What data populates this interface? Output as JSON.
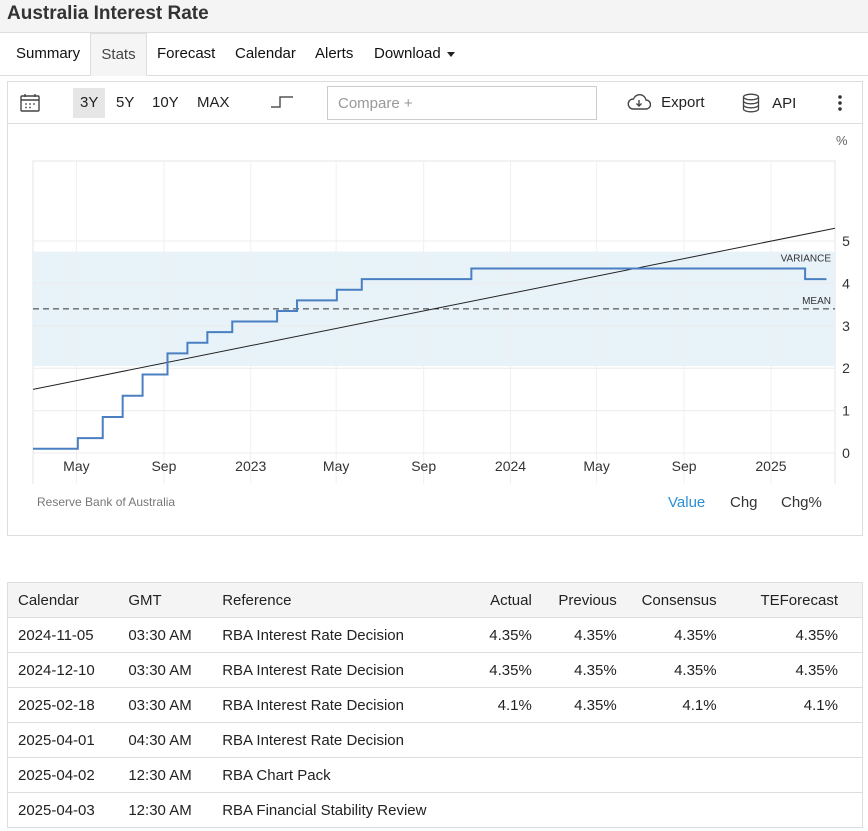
{
  "page": {
    "title": "Australia Interest Rate"
  },
  "tabs": [
    "Summary",
    "Stats",
    "Forecast",
    "Calendar",
    "Alerts",
    "Download"
  ],
  "active_tab": "Stats",
  "toolbar": {
    "ranges": [
      "3Y",
      "5Y",
      "10Y",
      "MAX"
    ],
    "active_range": "3Y",
    "compare_placeholder": "Compare +",
    "export_label": "Export",
    "api_label": "API"
  },
  "chart_data": {
    "type": "line",
    "step": true,
    "unit_label": "%",
    "xlim": [
      "2022-03-01",
      "2025-04-01"
    ],
    "ylim": [
      -1,
      5.8
    ],
    "x_ticks": [
      {
        "label": "May",
        "date": "2022-05-01"
      },
      {
        "label": "Sep",
        "date": "2022-09-01"
      },
      {
        "label": "2023",
        "date": "2023-01-01"
      },
      {
        "label": "May",
        "date": "2023-05-01"
      },
      {
        "label": "Sep",
        "date": "2023-09-01"
      },
      {
        "label": "2024",
        "date": "2024-01-01"
      },
      {
        "label": "May",
        "date": "2024-05-01"
      },
      {
        "label": "Sep",
        "date": "2024-09-01"
      },
      {
        "label": "2025",
        "date": "2025-01-01"
      }
    ],
    "y_ticks": [
      0,
      1,
      2,
      3,
      4,
      5
    ],
    "grid": true,
    "series": [
      {
        "color": "#4a7fc1",
        "points": [
          {
            "x": "2022-03-01",
            "y": 0.1
          },
          {
            "x": "2022-05-03",
            "y": 0.35
          },
          {
            "x": "2022-06-07",
            "y": 0.85
          },
          {
            "x": "2022-07-05",
            "y": 1.35
          },
          {
            "x": "2022-08-02",
            "y": 1.85
          },
          {
            "x": "2022-09-06",
            "y": 2.35
          },
          {
            "x": "2022-10-04",
            "y": 2.6
          },
          {
            "x": "2022-11-01",
            "y": 2.85
          },
          {
            "x": "2022-12-06",
            "y": 3.1
          },
          {
            "x": "2023-02-07",
            "y": 3.35
          },
          {
            "x": "2023-03-07",
            "y": 3.6
          },
          {
            "x": "2023-05-02",
            "y": 3.85
          },
          {
            "x": "2023-06-06",
            "y": 4.1
          },
          {
            "x": "2023-11-07",
            "y": 4.35
          },
          {
            "x": "2025-02-18",
            "y": 4.1
          },
          {
            "x": "2025-03-20",
            "y": 4.1
          }
        ]
      }
    ],
    "mean": 3.4,
    "mean_label": "MEAN",
    "variance_band": [
      2.05,
      4.75
    ],
    "variance_label": "VARIANCE",
    "trend": {
      "start": {
        "x": "2022-03-01",
        "y": 1.5
      },
      "end": {
        "x": "2025-04-01",
        "y": 5.3
      }
    },
    "source": "Reserve Bank of Australia"
  },
  "value_tabs": [
    "Value",
    "Chg",
    "Chg%"
  ],
  "active_value_tab": "Value",
  "calendar": {
    "columns": [
      "Calendar",
      "GMT",
      "Reference",
      "Actual",
      "Previous",
      "Consensus",
      "TEForecast"
    ],
    "rows": [
      [
        "2024-11-05",
        "03:30 AM",
        "RBA Interest Rate Decision",
        "4.35%",
        "4.35%",
        "4.35%",
        "4.35%"
      ],
      [
        "2024-12-10",
        "03:30 AM",
        "RBA Interest Rate Decision",
        "4.35%",
        "4.35%",
        "4.35%",
        "4.35%"
      ],
      [
        "2025-02-18",
        "03:30 AM",
        "RBA Interest Rate Decision",
        "4.1%",
        "4.35%",
        "4.1%",
        "4.1%"
      ],
      [
        "2025-04-01",
        "04:30 AM",
        "RBA Interest Rate Decision",
        "",
        "",
        "",
        ""
      ],
      [
        "2025-04-02",
        "12:30 AM",
        "RBA Chart Pack",
        "",
        "",
        "",
        ""
      ],
      [
        "2025-04-03",
        "12:30 AM",
        "RBA Financial Stability Review",
        "",
        "",
        "",
        ""
      ]
    ]
  }
}
